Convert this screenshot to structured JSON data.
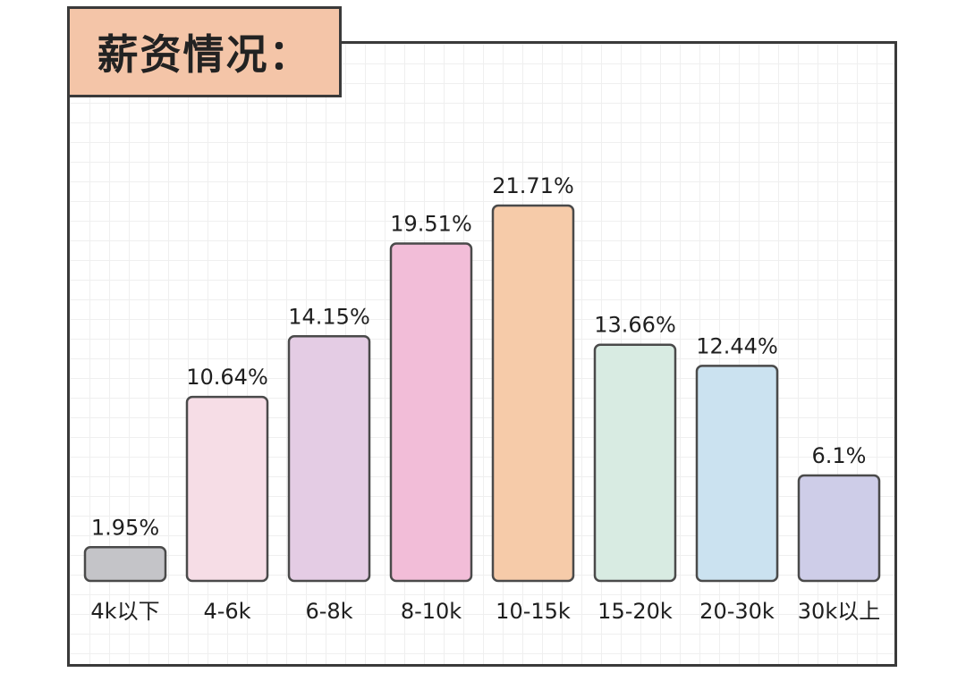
{
  "title": "薪资情况：",
  "chart_data": {
    "type": "bar",
    "title": "薪资情况：",
    "categories": [
      "4k以下",
      "4-6k",
      "6-8k",
      "8-10k",
      "10-15k",
      "15-20k",
      "20-30k",
      "30k以上"
    ],
    "values": [
      1.95,
      10.64,
      14.15,
      19.51,
      21.71,
      13.66,
      12.44,
      6.1
    ],
    "value_labels": [
      "1.95%",
      "10.64%",
      "14.15%",
      "19.51%",
      "21.71%",
      "13.66%",
      "12.44%",
      "6.1%"
    ],
    "unit": "%",
    "ylim": [
      0,
      21.71
    ],
    "grid": true,
    "legend": "none",
    "colors": [
      "#c4c4c8",
      "#f6dde6",
      "#e4cce4",
      "#f2bdd8",
      "#f6cba9",
      "#d8ebe2",
      "#cbe2f0",
      "#cecde8"
    ]
  }
}
